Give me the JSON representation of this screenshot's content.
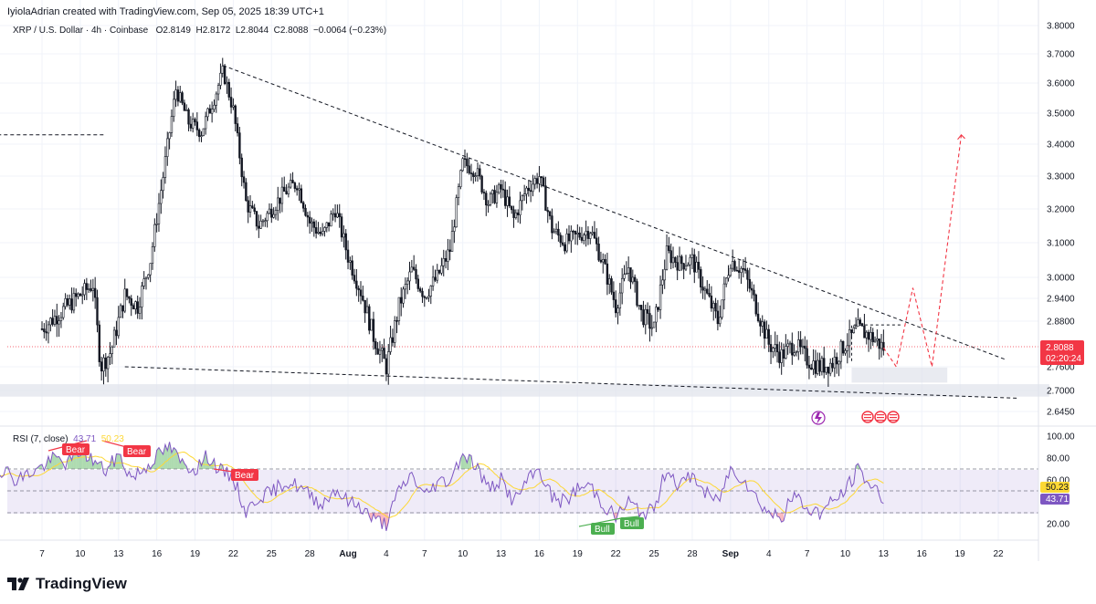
{
  "header": {
    "creator_text": "IyiolaAdrian created with TradingView.com, Sep 05, 2025 18:39 UTC+1"
  },
  "legend": {
    "symbol": "XRP / U.S. Dollar · 4h · Coinbase",
    "open": "O2.8149",
    "high": "H2.8172",
    "low": "L2.8044",
    "close": "C2.8088",
    "change": "−0.0064 (−0.23%)"
  },
  "rsi_legend": {
    "label": "RSI (7, close)",
    "value1": "43.71",
    "value2": "50.23"
  },
  "price_tag": {
    "price": "2.8088",
    "countdown": "02:20:24"
  },
  "rsi_tags": {
    "ma": "50.23",
    "rsi": "43.71"
  },
  "signals": {
    "bear1": "Bear",
    "bear2": "Bear",
    "bear3": "Bear",
    "bull1": "Bull",
    "bull2": "Bull"
  },
  "brand": {
    "name": "TradingView"
  },
  "colors": {
    "candle": "#131722",
    "bear": "#f23645",
    "bull": "#22ab94",
    "rsi": "#7e57c2",
    "rsi_ma": "#fdd835",
    "projection": "#f23645"
  },
  "chart_data": {
    "type": "candlestick",
    "symbol": "XRP / U.S. Dollar",
    "interval": "4h",
    "exchange": "Coinbase",
    "y_ticks": [
      "3.8000",
      "3.7000",
      "3.6000",
      "3.5000",
      "3.4000",
      "3.3000",
      "3.2000",
      "3.1000",
      "3.0000",
      "2.9400",
      "2.8800",
      "2.7600",
      "2.7000",
      "2.6450"
    ],
    "ylim": [
      2.62,
      3.82
    ],
    "x_ticks": [
      "7",
      "10",
      "13",
      "16",
      "19",
      "22",
      "25",
      "28",
      "Aug",
      "4",
      "7",
      "10",
      "13",
      "16",
      "19",
      "22",
      "25",
      "28",
      "Sep",
      "4",
      "7",
      "10",
      "13",
      "16",
      "19",
      "22"
    ],
    "x_bold": [
      "Aug",
      "Sep"
    ],
    "close_path": [
      {
        "d": 7,
        "p": 2.86
      },
      {
        "d": 11,
        "p": 2.98
      },
      {
        "d": 11.6,
        "p": 2.76
      },
      {
        "d": 12.4,
        "p": 2.8
      },
      {
        "d": 13.5,
        "p": 2.95
      },
      {
        "d": 14.5,
        "p": 2.92
      },
      {
        "d": 15.5,
        "p": 3.05
      },
      {
        "d": 16.5,
        "p": 3.3
      },
      {
        "d": 17.5,
        "p": 3.58
      },
      {
        "d": 18.5,
        "p": 3.47
      },
      {
        "d": 19.5,
        "p": 3.44
      },
      {
        "d": 20.5,
        "p": 3.55
      },
      {
        "d": 21.2,
        "p": 3.64
      },
      {
        "d": 22,
        "p": 3.51
      },
      {
        "d": 23,
        "p": 3.22
      },
      {
        "d": 24,
        "p": 3.15
      },
      {
        "d": 25,
        "p": 3.2
      },
      {
        "d": 26,
        "p": 3.25
      },
      {
        "d": 27,
        "p": 3.28
      },
      {
        "d": 28,
        "p": 3.16
      },
      {
        "d": 29,
        "p": 3.12
      },
      {
        "d": 30,
        "p": 3.2
      },
      {
        "d": 31,
        "p": 3.06
      },
      {
        "d": 32,
        "p": 2.96
      },
      {
        "d": 33,
        "p": 2.84
      },
      {
        "d": 34,
        "p": 2.76
      },
      {
        "d": 35,
        "p": 2.92
      },
      {
        "d": 36,
        "p": 3.02
      },
      {
        "d": 37,
        "p": 2.95
      },
      {
        "d": 38,
        "p": 3.0
      },
      {
        "d": 39,
        "p": 3.08
      },
      {
        "d": 40,
        "p": 3.34
      },
      {
        "d": 41,
        "p": 3.32
      },
      {
        "d": 42,
        "p": 3.22
      },
      {
        "d": 43,
        "p": 3.26
      },
      {
        "d": 44,
        "p": 3.17
      },
      {
        "d": 45,
        "p": 3.26
      },
      {
        "d": 46,
        "p": 3.3
      },
      {
        "d": 47,
        "p": 3.14
      },
      {
        "d": 48,
        "p": 3.1
      },
      {
        "d": 49,
        "p": 3.12
      },
      {
        "d": 50,
        "p": 3.14
      },
      {
        "d": 51,
        "p": 3.04
      },
      {
        "d": 52,
        "p": 2.92
      },
      {
        "d": 53,
        "p": 3.03
      },
      {
        "d": 54,
        "p": 2.9
      },
      {
        "d": 55,
        "p": 2.86
      },
      {
        "d": 56,
        "p": 3.07
      },
      {
        "d": 57,
        "p": 3.04
      },
      {
        "d": 58,
        "p": 3.05
      },
      {
        "d": 59,
        "p": 2.96
      },
      {
        "d": 60,
        "p": 2.88
      },
      {
        "d": 61,
        "p": 3.05
      },
      {
        "d": 62,
        "p": 3.02
      },
      {
        "d": 63,
        "p": 2.92
      },
      {
        "d": 64,
        "p": 2.82
      },
      {
        "d": 65,
        "p": 2.79
      },
      {
        "d": 66,
        "p": 2.82
      },
      {
        "d": 67,
        "p": 2.78
      },
      {
        "d": 68,
        "p": 2.76
      },
      {
        "d": 69,
        "p": 2.77
      },
      {
        "d": 70,
        "p": 2.82
      },
      {
        "d": 71,
        "p": 2.86
      },
      {
        "d": 72,
        "p": 2.84
      },
      {
        "d": 73,
        "p": 2.81
      }
    ],
    "projection": [
      {
        "d": 73,
        "p": 2.81
      },
      {
        "d": 74,
        "p": 2.76
      },
      {
        "d": 75.3,
        "p": 2.97
      },
      {
        "d": 76.8,
        "p": 2.76
      },
      {
        "d": 79.1,
        "p": 3.43
      }
    ],
    "trendlines": [
      {
        "name": "upper-descending",
        "from": {
          "d": 21.2,
          "p": 3.66
        },
        "to": {
          "d": 82.5,
          "p": 2.78
        }
      },
      {
        "name": "lower-support",
        "from": {
          "d": 13.5,
          "p": 2.76
        },
        "to": {
          "d": 83.5,
          "p": 2.68
        }
      },
      {
        "name": "previous-high",
        "from": {
          "d": 0,
          "p": 3.43
        },
        "to": {
          "d": 12,
          "p": 3.43
        }
      }
    ],
    "support_zones": [
      {
        "p_low": 2.684,
        "p_high": 2.716,
        "d_from": 3.5,
        "d_to": 86
      },
      {
        "p_low": 2.72,
        "p_high": 2.758,
        "d_from": 70.5,
        "d_to": 78
      }
    ],
    "current_price": 2.8088,
    "rsi": {
      "period": 7,
      "source": "close",
      "ylim": [
        0,
        100
      ],
      "y_ticks": [
        "100.00",
        "80.00",
        "60.00",
        "20.00"
      ],
      "bands": [
        70,
        50,
        30
      ],
      "last": 43.71,
      "ma_last": 50.23,
      "values": [
        {
          "d": 0,
          "v": 47
        },
        {
          "d": 2,
          "v": 60
        },
        {
          "d": 4,
          "v": 70
        },
        {
          "d": 5,
          "v": 60
        },
        {
          "d": 7,
          "v": 72
        },
        {
          "d": 8,
          "v": 80
        },
        {
          "d": 9,
          "v": 75
        },
        {
          "d": 10,
          "v": 87
        },
        {
          "d": 11,
          "v": 78
        },
        {
          "d": 12,
          "v": 68
        },
        {
          "d": 13,
          "v": 83
        },
        {
          "d": 14,
          "v": 62
        },
        {
          "d": 15,
          "v": 70
        },
        {
          "d": 16,
          "v": 82
        },
        {
          "d": 17,
          "v": 90
        },
        {
          "d": 18,
          "v": 75
        },
        {
          "d": 19,
          "v": 70
        },
        {
          "d": 20,
          "v": 82
        },
        {
          "d": 21,
          "v": 68
        },
        {
          "d": 22,
          "v": 62
        },
        {
          "d": 23,
          "v": 30
        },
        {
          "d": 24,
          "v": 45
        },
        {
          "d": 25,
          "v": 48
        },
        {
          "d": 26,
          "v": 58
        },
        {
          "d": 27,
          "v": 55
        },
        {
          "d": 28,
          "v": 46
        },
        {
          "d": 29,
          "v": 38
        },
        {
          "d": 30,
          "v": 52
        },
        {
          "d": 31,
          "v": 40
        },
        {
          "d": 32,
          "v": 36
        },
        {
          "d": 33,
          "v": 24
        },
        {
          "d": 34,
          "v": 20
        },
        {
          "d": 35,
          "v": 50
        },
        {
          "d": 36,
          "v": 65
        },
        {
          "d": 37,
          "v": 45
        },
        {
          "d": 38,
          "v": 58
        },
        {
          "d": 39,
          "v": 60
        },
        {
          "d": 40,
          "v": 85
        },
        {
          "d": 41,
          "v": 74
        },
        {
          "d": 42,
          "v": 52
        },
        {
          "d": 43,
          "v": 60
        },
        {
          "d": 44,
          "v": 40
        },
        {
          "d": 45,
          "v": 58
        },
        {
          "d": 46,
          "v": 70
        },
        {
          "d": 47,
          "v": 44
        },
        {
          "d": 48,
          "v": 40
        },
        {
          "d": 49,
          "v": 52
        },
        {
          "d": 50,
          "v": 55
        },
        {
          "d": 51,
          "v": 38
        },
        {
          "d": 52,
          "v": 26
        },
        {
          "d": 53,
          "v": 40
        },
        {
          "d": 54,
          "v": 30
        },
        {
          "d": 55,
          "v": 32
        },
        {
          "d": 56,
          "v": 72
        },
        {
          "d": 57,
          "v": 54
        },
        {
          "d": 58,
          "v": 65
        },
        {
          "d": 59,
          "v": 48
        },
        {
          "d": 60,
          "v": 40
        },
        {
          "d": 61,
          "v": 70
        },
        {
          "d": 62,
          "v": 62
        },
        {
          "d": 63,
          "v": 44
        },
        {
          "d": 64,
          "v": 30
        },
        {
          "d": 65,
          "v": 26
        },
        {
          "d": 66,
          "v": 46
        },
        {
          "d": 67,
          "v": 34
        },
        {
          "d": 68,
          "v": 30
        },
        {
          "d": 69,
          "v": 40
        },
        {
          "d": 70,
          "v": 50
        },
        {
          "d": 71,
          "v": 70
        },
        {
          "d": 72,
          "v": 55
        },
        {
          "d": 73,
          "v": 44
        }
      ]
    }
  }
}
